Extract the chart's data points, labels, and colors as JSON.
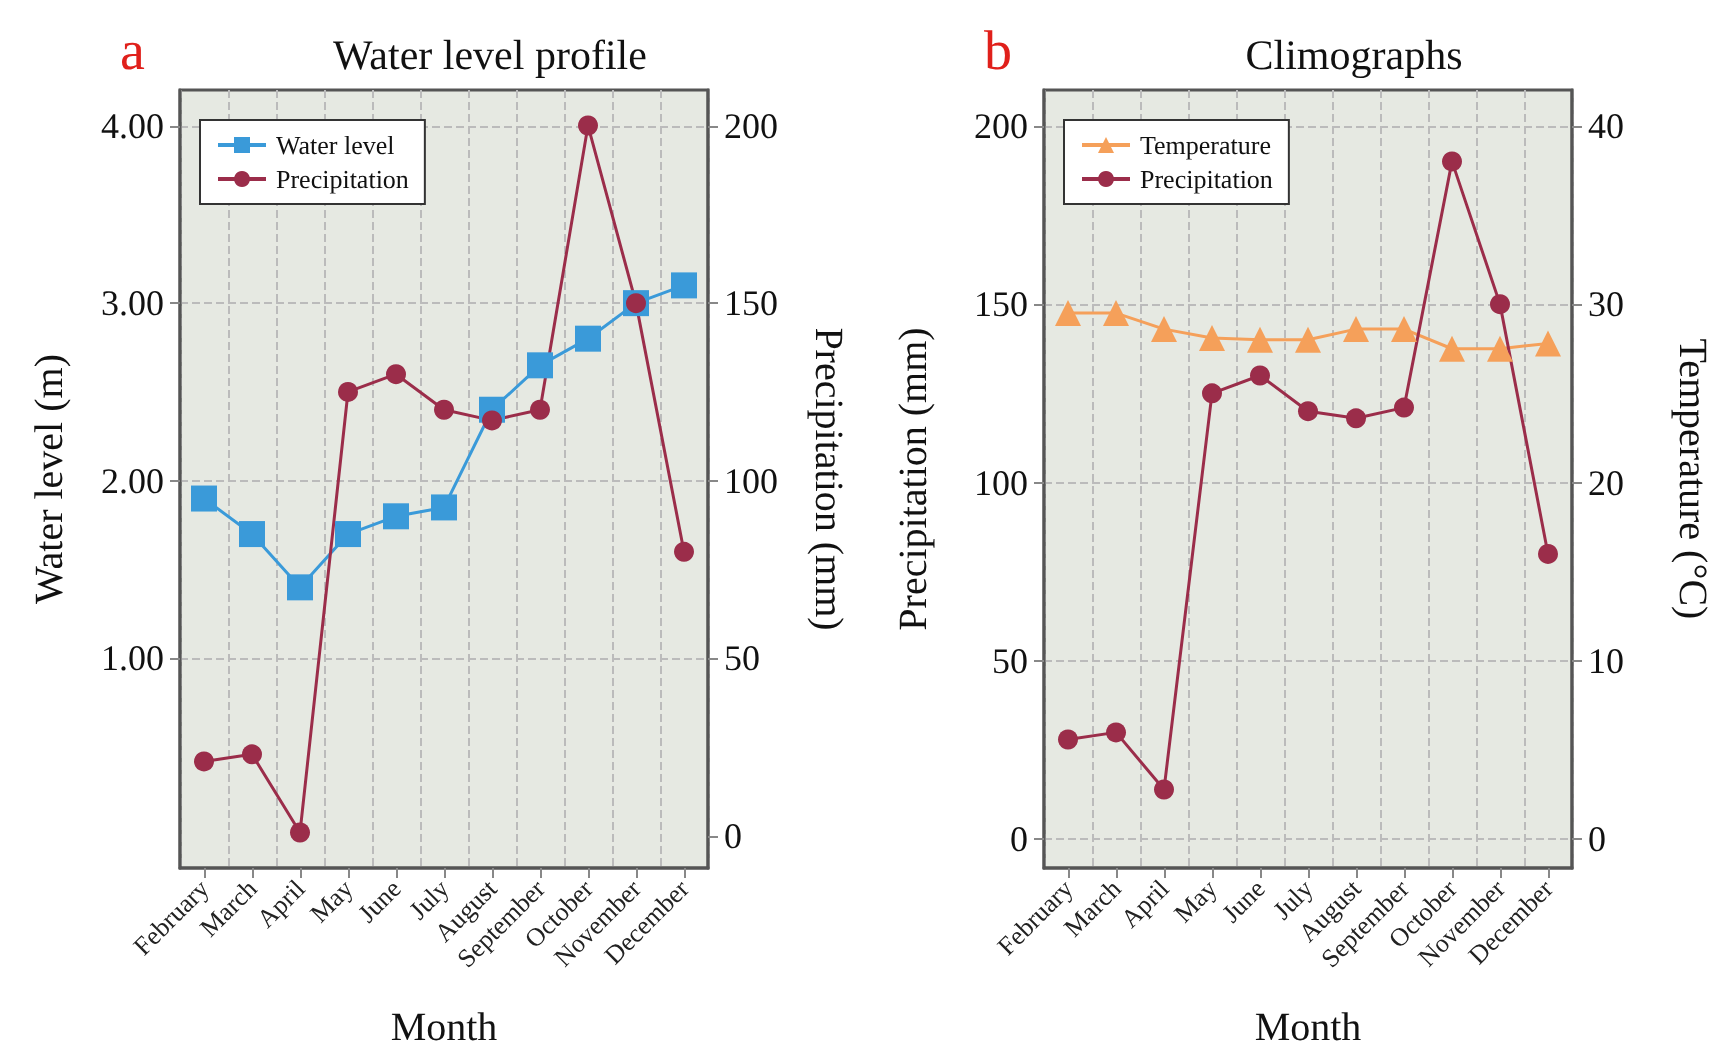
{
  "chart_data": [
    {
      "type": "line",
      "title": "Water level profile",
      "annotations": [
        "a"
      ],
      "xlabel": "Month",
      "ylabel": "Water level (m)",
      "y2label": "Precipitation (mm)",
      "categories": [
        "February",
        "March",
        "April",
        "May",
        "June",
        "July",
        "August",
        "September",
        "October",
        "November",
        "December"
      ],
      "series": [
        {
          "name": "Water level",
          "color": "#3a9ad9",
          "marker": "square",
          "values": [
            1.9,
            1.7,
            1.4,
            1.7,
            1.8,
            1.85,
            2.4,
            2.65,
            2.8,
            3.0,
            3.1
          ]
        },
        {
          "name": "Precipitation",
          "color": "#9b2d4a",
          "marker": "circle",
          "axis": "y2",
          "values": [
            21,
            23,
            1,
            125,
            130,
            120,
            117,
            120,
            200,
            150,
            80
          ]
        }
      ],
      "ylim": [
        -0.18,
        4.2
      ],
      "yticks": [
        {
          "value": 1,
          "label": "1.00"
        },
        {
          "value": 2,
          "label": "2.00"
        },
        {
          "value": 3,
          "label": "3.00"
        },
        {
          "value": 4,
          "label": "4.00"
        }
      ],
      "y2lim": [
        -9,
        210
      ],
      "y2ticks": [
        0,
        50,
        100,
        150,
        200
      ],
      "grid": true,
      "legend": "top left"
    },
    {
      "type": "line",
      "title": "Climographs",
      "annotations": [
        "b"
      ],
      "xlabel": "Month",
      "ylabel": "Precipitation (mm)",
      "y2label": "Temperature (°C)",
      "categories": [
        "February",
        "March",
        "April",
        "May",
        "June",
        "July",
        "August",
        "September",
        "October",
        "November",
        "December"
      ],
      "series": [
        {
          "name": "Temperature",
          "color": "#f5a05a",
          "marker": "triangle",
          "axis": "y2",
          "values": [
            29.5,
            29.5,
            28.6,
            28.1,
            28,
            28,
            28.6,
            28.6,
            27.5,
            27.5,
            27.8
          ]
        },
        {
          "name": "Precipitation",
          "color": "#9b2d4a",
          "marker": "circle",
          "values": [
            28,
            30,
            14,
            125,
            130,
            120,
            118,
            121,
            190,
            150,
            80
          ]
        }
      ],
      "ylim": [
        -8,
        210
      ],
      "yticks": [
        0,
        50,
        100,
        150,
        200
      ],
      "y2lim": [
        -1.6,
        42
      ],
      "y2ticks": [
        0,
        10,
        20,
        30,
        40
      ],
      "grid": true,
      "legend": "top left"
    }
  ]
}
